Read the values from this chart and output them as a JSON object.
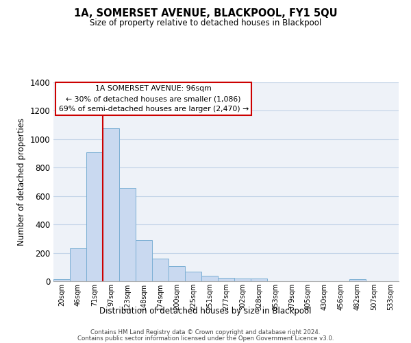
{
  "title": "1A, SOMERSET AVENUE, BLACKPOOL, FY1 5QU",
  "subtitle": "Size of property relative to detached houses in Blackpool",
  "xlabel": "Distribution of detached houses by size in Blackpool",
  "ylabel": "Number of detached properties",
  "bin_labels": [
    "20sqm",
    "46sqm",
    "71sqm",
    "97sqm",
    "123sqm",
    "148sqm",
    "174sqm",
    "200sqm",
    "225sqm",
    "251sqm",
    "277sqm",
    "302sqm",
    "328sqm",
    "353sqm",
    "379sqm",
    "405sqm",
    "430sqm",
    "456sqm",
    "482sqm",
    "507sqm",
    "533sqm"
  ],
  "bar_heights": [
    15,
    230,
    910,
    1075,
    655,
    290,
    160,
    105,
    70,
    40,
    25,
    20,
    20,
    0,
    0,
    0,
    0,
    0,
    15,
    0,
    0
  ],
  "bar_color": "#c9d9f0",
  "bar_edge_color": "#7bafd4",
  "vline_x_idx": 3,
  "vline_color": "#cc0000",
  "annotation_title": "1A SOMERSET AVENUE: 96sqm",
  "annotation_line1": "← 30% of detached houses are smaller (1,086)",
  "annotation_line2": "69% of semi-detached houses are larger (2,470) →",
  "annotation_box_color": "#ffffff",
  "annotation_box_edge_color": "#cc0000",
  "ylim": [
    0,
    1400
  ],
  "yticks": [
    0,
    200,
    400,
    600,
    800,
    1000,
    1200,
    1400
  ],
  "grid_color": "#c5d5e8",
  "bg_color": "#eef2f8",
  "footer1": "Contains HM Land Registry data © Crown copyright and database right 2024.",
  "footer2": "Contains public sector information licensed under the Open Government Licence v3.0."
}
